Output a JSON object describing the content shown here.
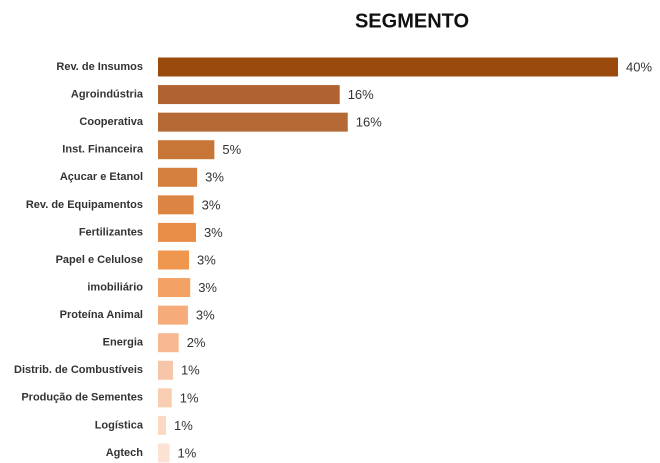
{
  "chart_data": {
    "type": "bar",
    "orientation": "horizontal",
    "title": "SEGMENTO",
    "categories": [
      "Rev. de Insumos",
      "Agroindústria",
      "Cooperativa",
      "Inst. Financeira",
      "Açucar e Etanol",
      "Rev. de Equipamentos",
      "Fertilizantes",
      "Papel e Celulose",
      "imobiliário",
      "Proteína Animal",
      "Energia",
      "Distrib. de Combustíveis",
      "Produção de Sementes",
      "Logística",
      "Agtech"
    ],
    "values": [
      40,
      15.8,
      16.5,
      4.9,
      3.4,
      3.1,
      3.3,
      2.7,
      2.8,
      2.6,
      1.8,
      1.3,
      1.2,
      0.7,
      1.0
    ],
    "value_labels": [
      "40%",
      "16%",
      "16%",
      "5%",
      "3%",
      "3%",
      "3%",
      "3%",
      "3%",
      "3%",
      "2%",
      "1%",
      "1%",
      "1%",
      "1%"
    ],
    "colors": [
      "#9a4a0d",
      "#b06230",
      "#b56a35",
      "#c87637",
      "#d47f3e",
      "#dc8542",
      "#e88d47",
      "#ef964f",
      "#f3a165",
      "#f6ab7b",
      "#f7b892",
      "#f7c6a8",
      "#f8cdb2",
      "#fad9c5",
      "#fbe2d3"
    ]
  }
}
